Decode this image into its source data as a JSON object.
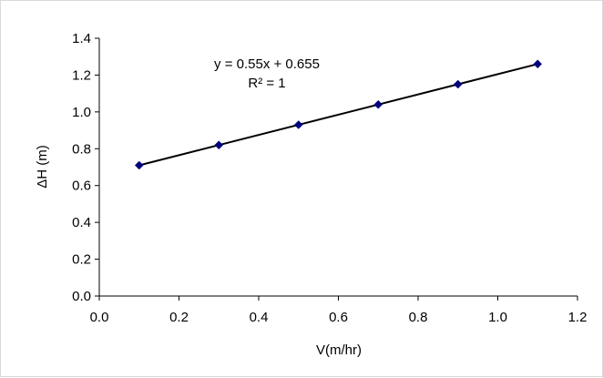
{
  "chart_data": {
    "type": "scatter",
    "title": "",
    "xlabel": "V(m/hr)",
    "ylabel": "ΔH (m)",
    "xlim": [
      0,
      1.2
    ],
    "ylim": [
      0,
      1.4
    ],
    "xticks": [
      0.0,
      0.2,
      0.4,
      0.6,
      0.8,
      1.0,
      1.2
    ],
    "yticks": [
      0.0,
      0.2,
      0.4,
      0.6,
      0.8,
      1.0,
      1.2,
      1.4
    ],
    "xtick_labels": [
      "0.0",
      "0.2",
      "0.4",
      "0.6",
      "0.8",
      "1.0",
      "1.2"
    ],
    "ytick_labels": [
      "0.0",
      "0.2",
      "0.4",
      "0.6",
      "0.8",
      "1.0",
      "1.2",
      "1.4"
    ],
    "grid": false,
    "legend": "none",
    "series": [
      {
        "x": [
          0.1,
          0.3,
          0.5,
          0.7,
          0.9,
          1.1
        ],
        "y": [
          0.71,
          0.82,
          0.93,
          1.04,
          1.15,
          1.26
        ],
        "marker": "diamond",
        "color": "#00007f"
      }
    ],
    "trendline": {
      "type": "linear",
      "slope": 0.55,
      "intercept": 0.655,
      "x_range": [
        0.1,
        1.1
      ],
      "color": "#000000"
    },
    "annotations": {
      "equation": "y = 0.55x + 0.655",
      "r_squared": "R² = 1"
    }
  }
}
